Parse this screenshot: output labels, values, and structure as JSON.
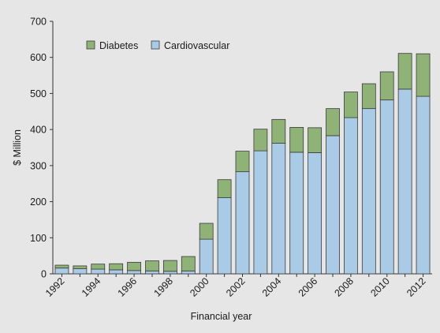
{
  "chart_data": {
    "type": "bar",
    "stacked": true,
    "title": "",
    "xlabel": "Financial year",
    "ylabel": "$ Million",
    "ylim": [
      0,
      700
    ],
    "yticks": [
      0,
      100,
      200,
      300,
      400,
      500,
      600,
      700
    ],
    "grid": false,
    "legend_position": "top-left",
    "categories": [
      "1992",
      "1993",
      "1994",
      "1995",
      "1996",
      "1997",
      "1998",
      "1999",
      "2000",
      "2001",
      "2002",
      "2003",
      "2004",
      "2005",
      "2006",
      "2007",
      "2008",
      "2009",
      "2010",
      "2011",
      "2012"
    ],
    "x_tick_labels": [
      "1992",
      "",
      "1994",
      "",
      "1996",
      "",
      "1998",
      "",
      "2000",
      "",
      "2002",
      "",
      "2004",
      "",
      "2006",
      "",
      "2008",
      "",
      "2010",
      "",
      "2012"
    ],
    "series": [
      {
        "name": "Cardiovascular",
        "color": "#a9cbe6",
        "values": [
          16,
          14,
          13,
          11,
          9,
          8,
          7,
          8,
          96,
          211,
          283,
          341,
          362,
          337,
          336,
          383,
          433,
          458,
          482,
          512,
          492
        ]
      },
      {
        "name": "Diabetes",
        "color": "#8fb276",
        "values": [
          8,
          8,
          14,
          17,
          23,
          28,
          30,
          40,
          44,
          50,
          57,
          60,
          66,
          69,
          69,
          75,
          71,
          69,
          78,
          99,
          118
        ]
      }
    ],
    "legend": [
      {
        "label": "Diabetes",
        "color": "#8fb276"
      },
      {
        "label": "Cardiovascular",
        "color": "#a9cbe6"
      }
    ]
  }
}
